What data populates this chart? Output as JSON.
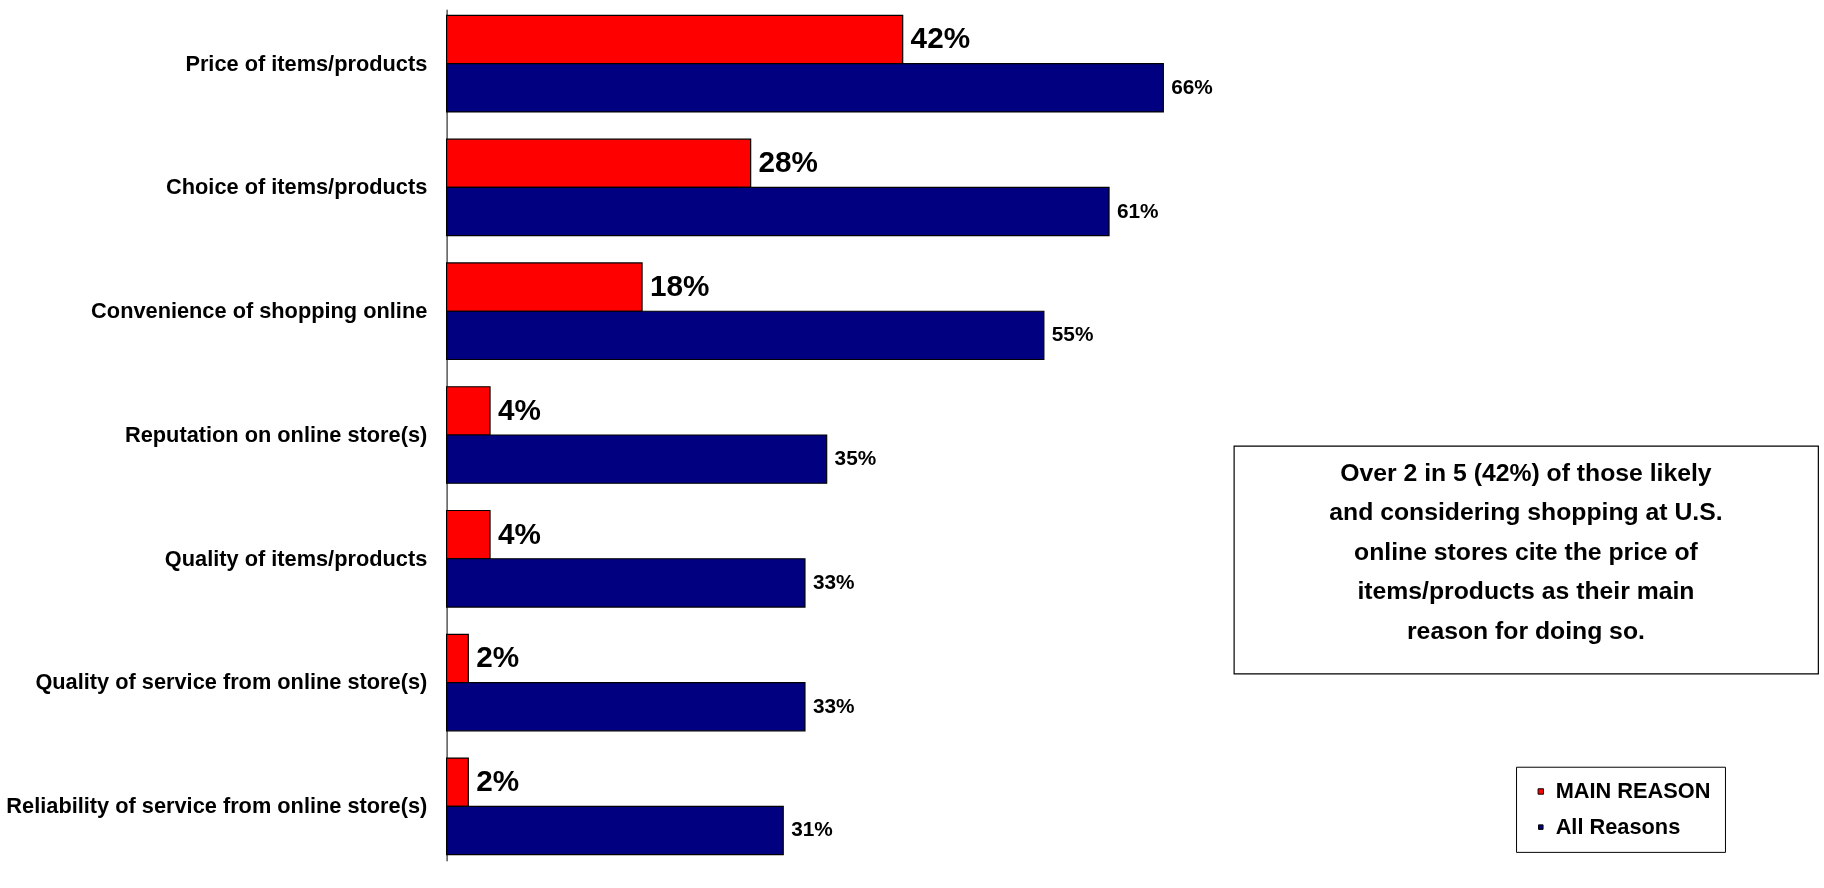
{
  "chart_data": {
    "type": "bar",
    "orientation": "horizontal",
    "categories": [
      "Price of items/products",
      "Choice of items/products",
      "Convenience of shopping online",
      "Reputation on online store(s)",
      "Quality of items/products",
      "Quality of service from online store(s)",
      "Reliability of service from online store(s)"
    ],
    "series": [
      {
        "name": "MAIN REASON",
        "color": "#ff0000",
        "values": [
          42,
          28,
          18,
          4,
          4,
          2,
          2
        ],
        "value_labels": [
          "42%",
          "28%",
          "18%",
          "4%",
          "4%",
          "2%",
          "2%"
        ]
      },
      {
        "name": "All Reasons",
        "color": "#000080",
        "values": [
          66,
          61,
          55,
          35,
          33,
          33,
          31
        ],
        "value_labels": [
          "66%",
          "61%",
          "55%",
          "35%",
          "33%",
          "33%",
          "31%"
        ]
      }
    ],
    "annotations": [
      "Over 2 in 5 (42%) of those likely and considering shopping at U.S. online stores cite the price of items/products as their main reason for doing so."
    ],
    "legend": "bottom right"
  }
}
